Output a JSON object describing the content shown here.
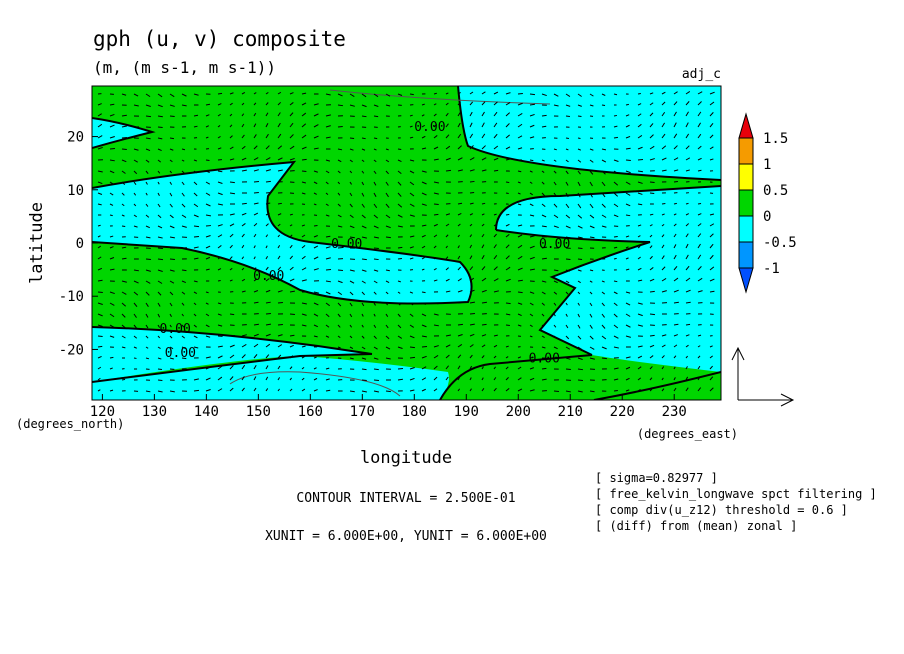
{
  "chart_data": {
    "type": "heatmap",
    "title": "gph (u, v) composite",
    "subtitle": "(m, (m s-1, m s-1))",
    "corner_label": "adj_c",
    "xlabel": "longitude",
    "ylabel": "latitude",
    "x_unit_label": "(degrees_east)",
    "y_unit_label": "(degrees_north)",
    "xlim": [
      118,
      239
    ],
    "ylim": [
      -29.5,
      29.5
    ],
    "x_ticks": [
      "120",
      "130",
      "140",
      "150",
      "160",
      "170",
      "180",
      "190",
      "200",
      "210",
      "220",
      "230"
    ],
    "x_tick_values": [
      120,
      130,
      140,
      150,
      160,
      170,
      180,
      190,
      200,
      210,
      220,
      230
    ],
    "y_ticks": [
      "20",
      "10",
      "0",
      "-10",
      "-20"
    ],
    "y_tick_values": [
      20,
      10,
      0,
      -10,
      -20
    ],
    "colorbar": {
      "labels": [
        "1.5",
        "1",
        "0.5",
        "0",
        "-0.5",
        "-1"
      ],
      "bins": [
        {
          "range": "above 1.5",
          "color": "#e8000b"
        },
        {
          "range": "1 to 1.5",
          "color": "#f59b00"
        },
        {
          "range": "0.5 to 1",
          "color": "#ffff00"
        },
        {
          "range": "0 to 0.5",
          "color": "#00d600"
        },
        {
          "range": "-0.5 to 0",
          "color": "#00ffff"
        },
        {
          "range": "-1 to -0.5",
          "color": "#0096ff"
        },
        {
          "range": "below -1",
          "color": "#0050ff"
        }
      ]
    },
    "contour_labels": [
      {
        "text": "0.00",
        "lon": 183,
        "lat": 22
      },
      {
        "text": "0.00",
        "lon": 167,
        "lat": 0
      },
      {
        "text": "0.00",
        "lon": 207,
        "lat": 0
      },
      {
        "text": "0.00",
        "lon": 152,
        "lat": -6
      },
      {
        "text": "0.00",
        "lon": 134,
        "lat": -16
      },
      {
        "text": "0.00",
        "lon": 135,
        "lat": -20.5
      },
      {
        "text": "0.00",
        "lon": 205,
        "lat": -21.5
      }
    ],
    "contour_interval_text": "CONTOUR INTERVAL = 2.500E-01",
    "units_text": "XUNIT = 6.000E+00, YUNIT = 6.000E+00",
    "notes": [
      "[ sigma=0.82977 ]",
      "[ free_kelvin_longwave spct filtering ]",
      "[ comp div(u_z12) threshold = 0.6 ]",
      "[ (diff) from (mean) zonal ]"
    ],
    "grid": false,
    "legend": "right colorbar"
  }
}
